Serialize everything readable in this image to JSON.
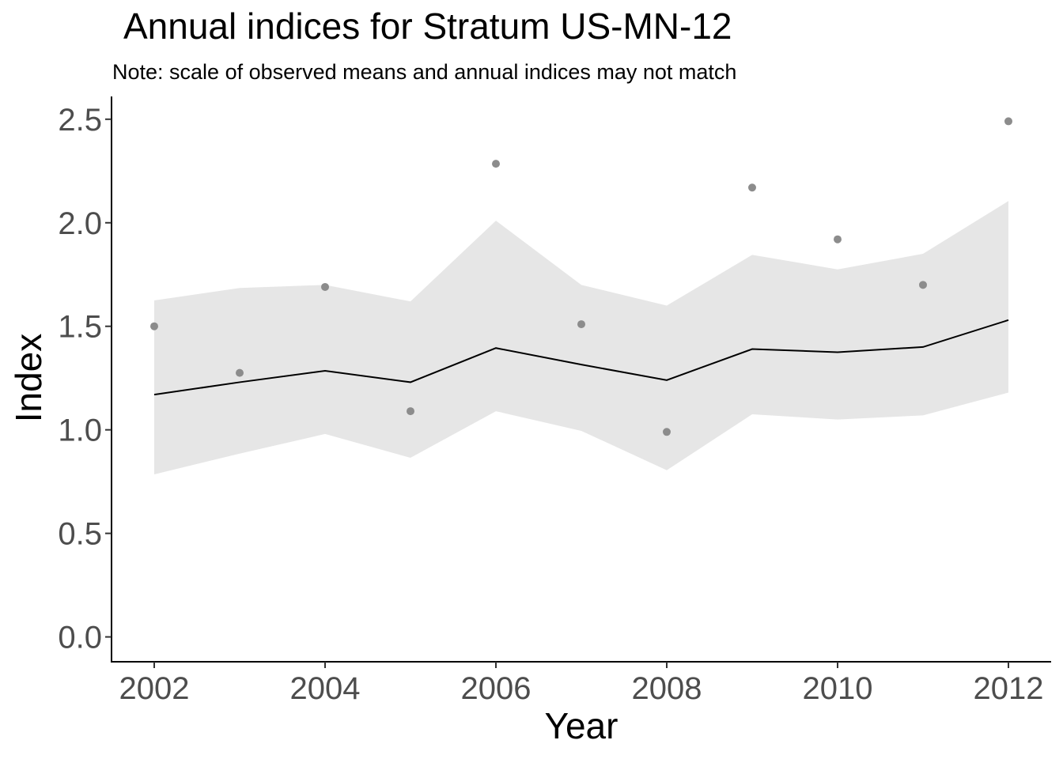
{
  "chart_data": {
    "type": "line",
    "title": "Annual indices for Stratum US-MN-12",
    "subtitle": "Note: scale of observed means and annual indices may not match",
    "xlabel": "Year",
    "ylabel": "Index",
    "x": [
      2002,
      2003,
      2004,
      2005,
      2006,
      2007,
      2008,
      2009,
      2010,
      2011,
      2012
    ],
    "xticks": [
      2002,
      2004,
      2006,
      2008,
      2010,
      2012
    ],
    "yticks": [
      0.0,
      0.5,
      1.0,
      1.5,
      2.0,
      2.5
    ],
    "ytick_labels": [
      "0.0",
      "0.5",
      "1.0",
      "1.5",
      "2.0",
      "2.5"
    ],
    "xlim": [
      2001.5,
      2012.5
    ],
    "ylim": [
      -0.12,
      2.61
    ],
    "grid": false,
    "series": [
      {
        "kind": "line",
        "values": [
          1.17,
          1.23,
          1.285,
          1.23,
          1.395,
          1.315,
          1.24,
          1.39,
          1.375,
          1.4,
          1.53
        ],
        "color": "#000000"
      },
      {
        "kind": "ribbon",
        "lower": [
          0.785,
          0.885,
          0.98,
          0.865,
          1.09,
          0.995,
          0.805,
          1.075,
          1.05,
          1.07,
          1.18
        ],
        "upper": [
          1.625,
          1.685,
          1.7,
          1.62,
          2.01,
          1.7,
          1.6,
          1.845,
          1.775,
          1.85,
          2.105
        ],
        "color": "#e6e6e6"
      },
      {
        "kind": "points",
        "values": [
          1.5,
          1.275,
          1.69,
          1.09,
          2.285,
          1.51,
          0.99,
          2.17,
          1.92,
          1.7,
          2.49
        ],
        "color": "#8c8c8c"
      }
    ]
  }
}
